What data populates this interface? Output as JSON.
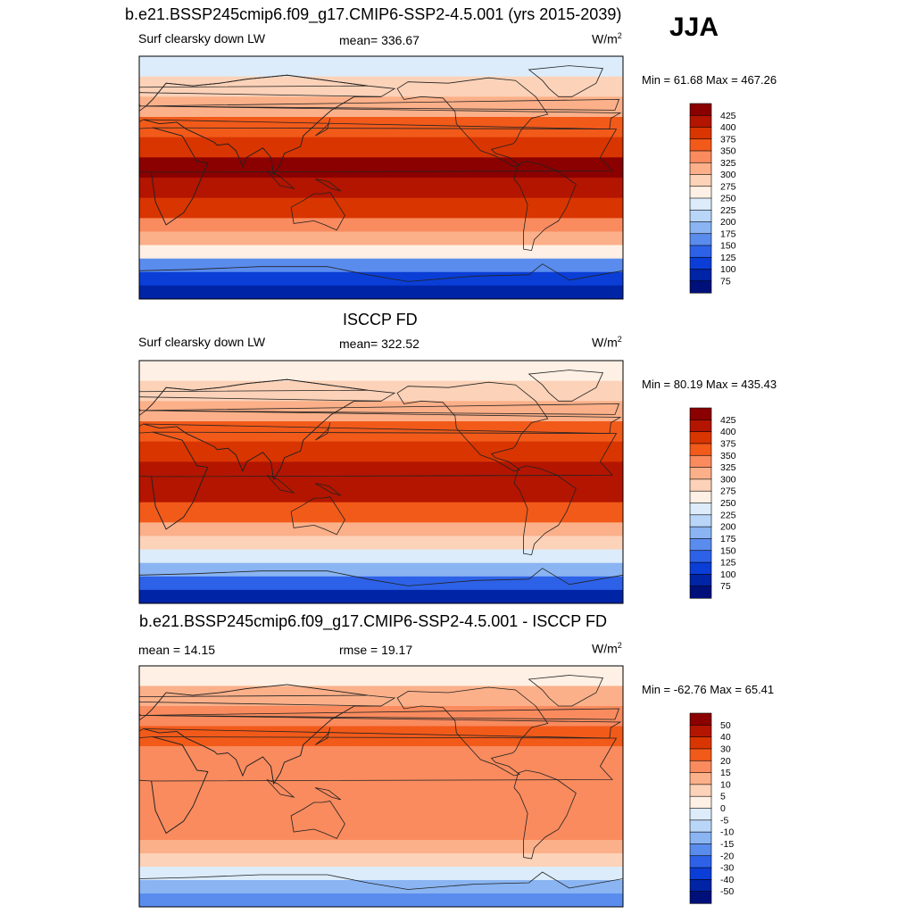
{
  "header": {
    "main_title": "b.e21.BSSP245cmip6.f09_g17.CMIP6-SSP2-4.5.001 (yrs 2015-2039)",
    "season": "JJA"
  },
  "chart_data": [
    {
      "type": "heatmap",
      "variable_label": "Surf clearsky down LW",
      "stat_text": "mean= 336.67",
      "units": "W/m",
      "units_sup": "2",
      "mean": 336.67,
      "min": 61.68,
      "max": 467.26,
      "minmax_text": "Min =  61.68 Max = 467.26",
      "colorbar_ticks": [
        "425",
        "400",
        "375",
        "350",
        "325",
        "300",
        "275",
        "250",
        "225",
        "200",
        "175",
        "150",
        "125",
        "100",
        "75"
      ],
      "colorbar_colors": [
        "#8b0000",
        "#b31500",
        "#d93500",
        "#f25a1a",
        "#f98b5e",
        "#fbb089",
        "#fcd2b8",
        "#fef0e4",
        "#dcecfb",
        "#b9d6f8",
        "#8ab4f2",
        "#5a8cee",
        "#2d62e8",
        "#0a3ed6",
        "#0024a6",
        "#00107a"
      ],
      "lat_bands": [
        {
          "lat_from": 90,
          "lat_to": 75,
          "value": 240
        },
        {
          "lat_from": 75,
          "lat_to": 60,
          "value": 290
        },
        {
          "lat_from": 60,
          "lat_to": 45,
          "value": 315
        },
        {
          "lat_from": 45,
          "lat_to": 30,
          "value": 360
        },
        {
          "lat_from": 30,
          "lat_to": 15,
          "value": 395
        },
        {
          "lat_from": 15,
          "lat_to": 0,
          "value": 430
        },
        {
          "lat_from": 0,
          "lat_to": -15,
          "value": 415
        },
        {
          "lat_from": -15,
          "lat_to": -30,
          "value": 375
        },
        {
          "lat_from": -30,
          "lat_to": -40,
          "value": 335
        },
        {
          "lat_from": -40,
          "lat_to": -50,
          "value": 300
        },
        {
          "lat_from": -50,
          "lat_to": -60,
          "value": 250
        },
        {
          "lat_from": -60,
          "lat_to": -70,
          "value": 170
        },
        {
          "lat_from": -70,
          "lat_to": -80,
          "value": 110
        },
        {
          "lat_from": -80,
          "lat_to": -90,
          "value": 75
        }
      ]
    },
    {
      "type": "heatmap",
      "panel_title": "ISCCP FD",
      "variable_label": "Surf clearsky down LW",
      "stat_text": "mean= 322.52",
      "units": "W/m",
      "units_sup": "2",
      "mean": 322.52,
      "min": 80.19,
      "max": 435.43,
      "minmax_text": "Min =  80.19 Max = 435.43",
      "colorbar_ticks": [
        "425",
        "400",
        "375",
        "350",
        "325",
        "300",
        "275",
        "250",
        "225",
        "200",
        "175",
        "150",
        "125",
        "100",
        "75"
      ],
      "colorbar_colors": [
        "#8b0000",
        "#b31500",
        "#d93500",
        "#f25a1a",
        "#f98b5e",
        "#fbb089",
        "#fcd2b8",
        "#fef0e4",
        "#dcecfb",
        "#b9d6f8",
        "#8ab4f2",
        "#5a8cee",
        "#2d62e8",
        "#0a3ed6",
        "#0024a6",
        "#00107a"
      ],
      "lat_bands": [
        {
          "lat_from": 90,
          "lat_to": 75,
          "value": 250
        },
        {
          "lat_from": 75,
          "lat_to": 60,
          "value": 285
        },
        {
          "lat_from": 60,
          "lat_to": 45,
          "value": 310
        },
        {
          "lat_from": 45,
          "lat_to": 30,
          "value": 350
        },
        {
          "lat_from": 30,
          "lat_to": 15,
          "value": 385
        },
        {
          "lat_from": 15,
          "lat_to": 0,
          "value": 410
        },
        {
          "lat_from": 0,
          "lat_to": -15,
          "value": 400
        },
        {
          "lat_from": -15,
          "lat_to": -30,
          "value": 360
        },
        {
          "lat_from": -30,
          "lat_to": -40,
          "value": 320
        },
        {
          "lat_from": -40,
          "lat_to": -50,
          "value": 285
        },
        {
          "lat_from": -50,
          "lat_to": -60,
          "value": 235
        },
        {
          "lat_from": -60,
          "lat_to": -70,
          "value": 180
        },
        {
          "lat_from": -70,
          "lat_to": -80,
          "value": 125
        },
        {
          "lat_from": -80,
          "lat_to": -90,
          "value": 95
        }
      ]
    },
    {
      "type": "heatmap",
      "panel_title": "b.e21.BSSP245cmip6.f09_g17.CMIP6-SSP2-4.5.001 - ISCCP FD",
      "stat_text": "mean =  14.15",
      "rmse_text": "rmse =  19.17",
      "units": "W/m",
      "units_sup": "2",
      "mean": 14.15,
      "rmse": 19.17,
      "min": -62.76,
      "max": 65.41,
      "minmax_text": "Min = -62.76 Max =  65.41",
      "colorbar_ticks": [
        "50",
        "40",
        "30",
        "20",
        "15",
        "10",
        "5",
        "0",
        "-5",
        "-10",
        "-15",
        "-20",
        "-30",
        "-40",
        "-50"
      ],
      "colorbar_colors": [
        "#8b0000",
        "#b31500",
        "#d93500",
        "#f25a1a",
        "#f98b5e",
        "#fbb089",
        "#fcd2b8",
        "#fef0e4",
        "#dcecfb",
        "#b9d6f8",
        "#8ab4f2",
        "#5a8cee",
        "#2d62e8",
        "#0a3ed6",
        "#0024a6",
        "#00107a"
      ],
      "lat_bands": [
        {
          "lat_from": 90,
          "lat_to": 75,
          "value": 2
        },
        {
          "lat_from": 75,
          "lat_to": 60,
          "value": 12
        },
        {
          "lat_from": 60,
          "lat_to": 45,
          "value": 18
        },
        {
          "lat_from": 45,
          "lat_to": 30,
          "value": 20
        },
        {
          "lat_from": 30,
          "lat_to": 15,
          "value": 16
        },
        {
          "lat_from": 15,
          "lat_to": 0,
          "value": 17
        },
        {
          "lat_from": 0,
          "lat_to": -15,
          "value": 15
        },
        {
          "lat_from": -15,
          "lat_to": -30,
          "value": 18
        },
        {
          "lat_from": -30,
          "lat_to": -40,
          "value": 15
        },
        {
          "lat_from": -40,
          "lat_to": -50,
          "value": 12
        },
        {
          "lat_from": -50,
          "lat_to": -60,
          "value": 6
        },
        {
          "lat_from": -60,
          "lat_to": -70,
          "value": -2
        },
        {
          "lat_from": -70,
          "lat_to": -80,
          "value": -12
        },
        {
          "lat_from": -80,
          "lat_to": -90,
          "value": -20
        }
      ]
    }
  ]
}
